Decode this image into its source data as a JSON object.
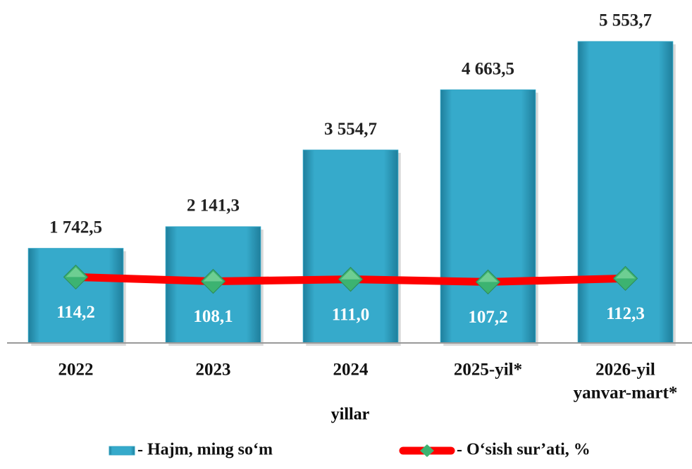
{
  "chart_data": {
    "type": "bar_line",
    "categories": [
      [
        "2022"
      ],
      [
        "2023"
      ],
      [
        "2024"
      ],
      [
        "2025-yil*"
      ],
      [
        "2026-yil",
        "yanvar-mart*"
      ]
    ],
    "x_axis_label": "yillar",
    "ylim": [
      0,
      5800
    ],
    "y2lim": [
      20,
      470
    ],
    "series": [
      {
        "name": "- Hajm, ming so‘m",
        "type": "bar",
        "color": "#2fa3c3",
        "values": [
          1742.5,
          2141.3,
          3554.7,
          4663.5,
          5553.7
        ],
        "value_labels": [
          "1 742,5",
          "2 141,3",
          "3 554,7",
          "4 663,5",
          "5 553,7"
        ]
      },
      {
        "name": "- O‘sish sur’ati, %",
        "type": "line",
        "axis": "y2",
        "color": "#ff0000",
        "marker_color": "#3cb371",
        "values": [
          114.2,
          108.1,
          111.0,
          107.2,
          112.3
        ],
        "value_labels": [
          "114,2",
          "108,1",
          "111,0",
          "107,2",
          "112,3"
        ]
      }
    ]
  }
}
